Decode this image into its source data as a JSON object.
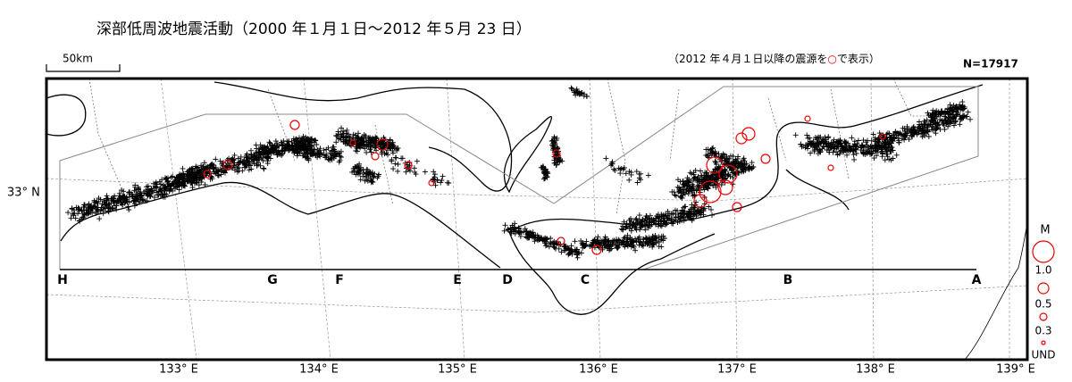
{
  "title": "深部低周波地震活動（2000 年１月１日～2012 年５月 23 日）",
  "scale_label": "50km",
  "note": {
    "before": "（2012 年４月１日以降の震源を",
    "mark": "○",
    "after": "で表示）"
  },
  "count": "N=17917",
  "lat_label": "33° N",
  "lon_labels": [
    "133° E",
    "134° E",
    "135° E",
    "136° E",
    "137° E",
    "138° E",
    "139° E"
  ],
  "section_labels": [
    "H",
    "G",
    "F",
    "E",
    "D",
    "C",
    "B",
    "A"
  ],
  "legend": {
    "title": "M",
    "sizes": [
      "1.0",
      "0.5",
      "0.3",
      "UND"
    ]
  }
}
